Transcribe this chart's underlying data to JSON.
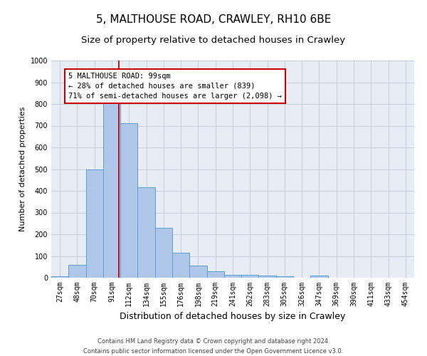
{
  "title": "5, MALTHOUSE ROAD, CRAWLEY, RH10 6BE",
  "subtitle": "Size of property relative to detached houses in Crawley",
  "xlabel": "Distribution of detached houses by size in Crawley",
  "ylabel": "Number of detached properties",
  "footer_line1": "Contains HM Land Registry data © Crown copyright and database right 2024.",
  "footer_line2": "Contains public sector information licensed under the Open Government Licence v3.0.",
  "bin_labels": [
    "27sqm",
    "48sqm",
    "70sqm",
    "91sqm",
    "112sqm",
    "134sqm",
    "155sqm",
    "176sqm",
    "198sqm",
    "219sqm",
    "241sqm",
    "262sqm",
    "283sqm",
    "305sqm",
    "326sqm",
    "347sqm",
    "369sqm",
    "390sqm",
    "411sqm",
    "433sqm",
    "454sqm"
  ],
  "bin_edges": [
    16.5,
    37.5,
    58.5,
    79.5,
    100.5,
    121.5,
    142.5,
    163.5,
    184.5,
    205.5,
    226.5,
    247.5,
    268.5,
    289.5,
    310.5,
    331.5,
    352.5,
    373.5,
    394.5,
    415.5,
    436.5,
    457.5
  ],
  "bar_values": [
    5,
    60,
    500,
    820,
    710,
    415,
    230,
    115,
    57,
    30,
    12,
    12,
    10,
    7,
    0,
    10,
    0,
    0,
    0,
    0,
    0
  ],
  "bar_color": "#aec6e8",
  "bar_edge_color": "#5a9fd4",
  "red_line_x": 99,
  "annotation_title": "5 MALTHOUSE ROAD: 99sqm",
  "annotation_line1": "← 28% of detached houses are smaller (839)",
  "annotation_line2": "71% of semi-detached houses are larger (2,098) →",
  "annotation_box_color": "#cc0000",
  "ylim": [
    0,
    1000
  ],
  "yticks": [
    0,
    100,
    200,
    300,
    400,
    500,
    600,
    700,
    800,
    900,
    1000
  ],
  "grid_color": "#c0c8d8",
  "background_color": "#e8edf5",
  "title_fontsize": 11,
  "subtitle_fontsize": 9.5,
  "xlabel_fontsize": 9,
  "ylabel_fontsize": 8,
  "footer_fontsize": 6,
  "tick_fontsize": 7
}
